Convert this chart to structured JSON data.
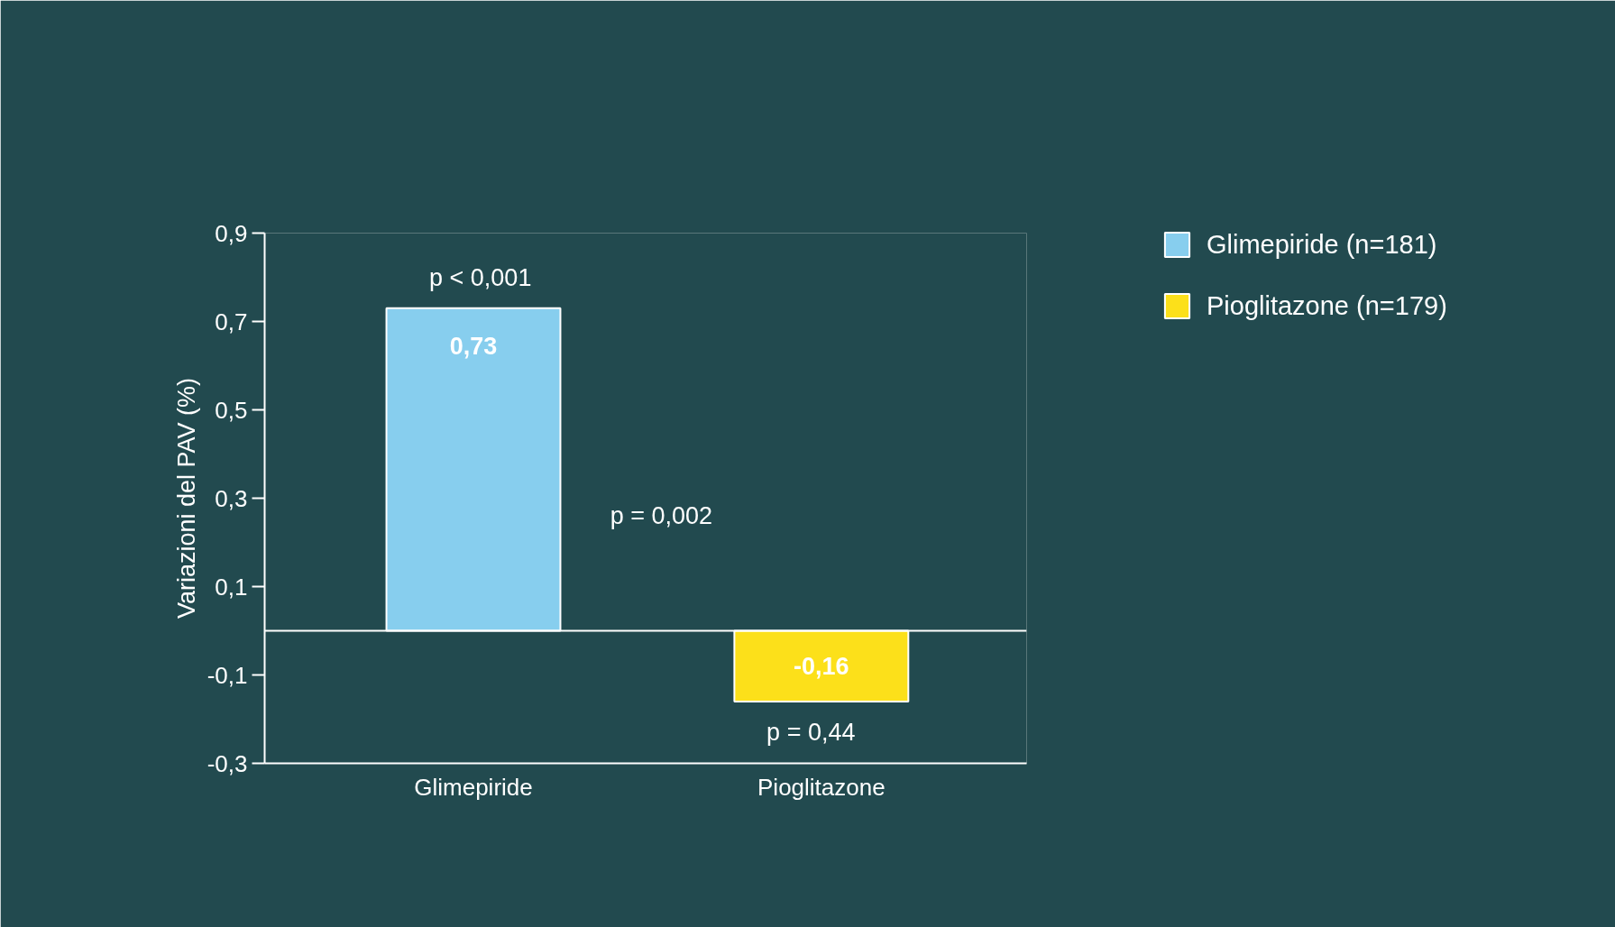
{
  "chart_data": {
    "type": "bar",
    "ylabel": "Variazioni del PAV (%)",
    "categories": [
      "Glimepiride",
      "Pioglitazone"
    ],
    "series": [
      {
        "name": "Glimepiride (n=181)",
        "color": "#87ceee",
        "values": [
          0.73,
          null
        ],
        "value_labels": [
          "0,73",
          null
        ]
      },
      {
        "name": "Pioglitazone (n=179)",
        "color": "#fce01a",
        "values": [
          null,
          -0.16
        ],
        "value_labels": [
          null,
          "-0,16"
        ]
      }
    ],
    "ylim": [
      -0.3,
      0.9
    ],
    "yticks": [
      {
        "value": -0.3,
        "label": "-0,3"
      },
      {
        "value": -0.1,
        "label": "-0,1"
      },
      {
        "value": 0.1,
        "label": "0,1"
      },
      {
        "value": 0.3,
        "label": "0,3"
      },
      {
        "value": 0.5,
        "label": "0,5"
      },
      {
        "value": 0.7,
        "label": "0,7"
      },
      {
        "value": 0.9,
        "label": "0,9"
      }
    ],
    "ref_lines": [
      {
        "axis": "y",
        "value": 0,
        "color": "#ffffff"
      }
    ],
    "annotations": [
      "p < 0,001",
      "p = 0,002",
      "p = 0,44"
    ],
    "grid": false,
    "legend": "top right"
  }
}
